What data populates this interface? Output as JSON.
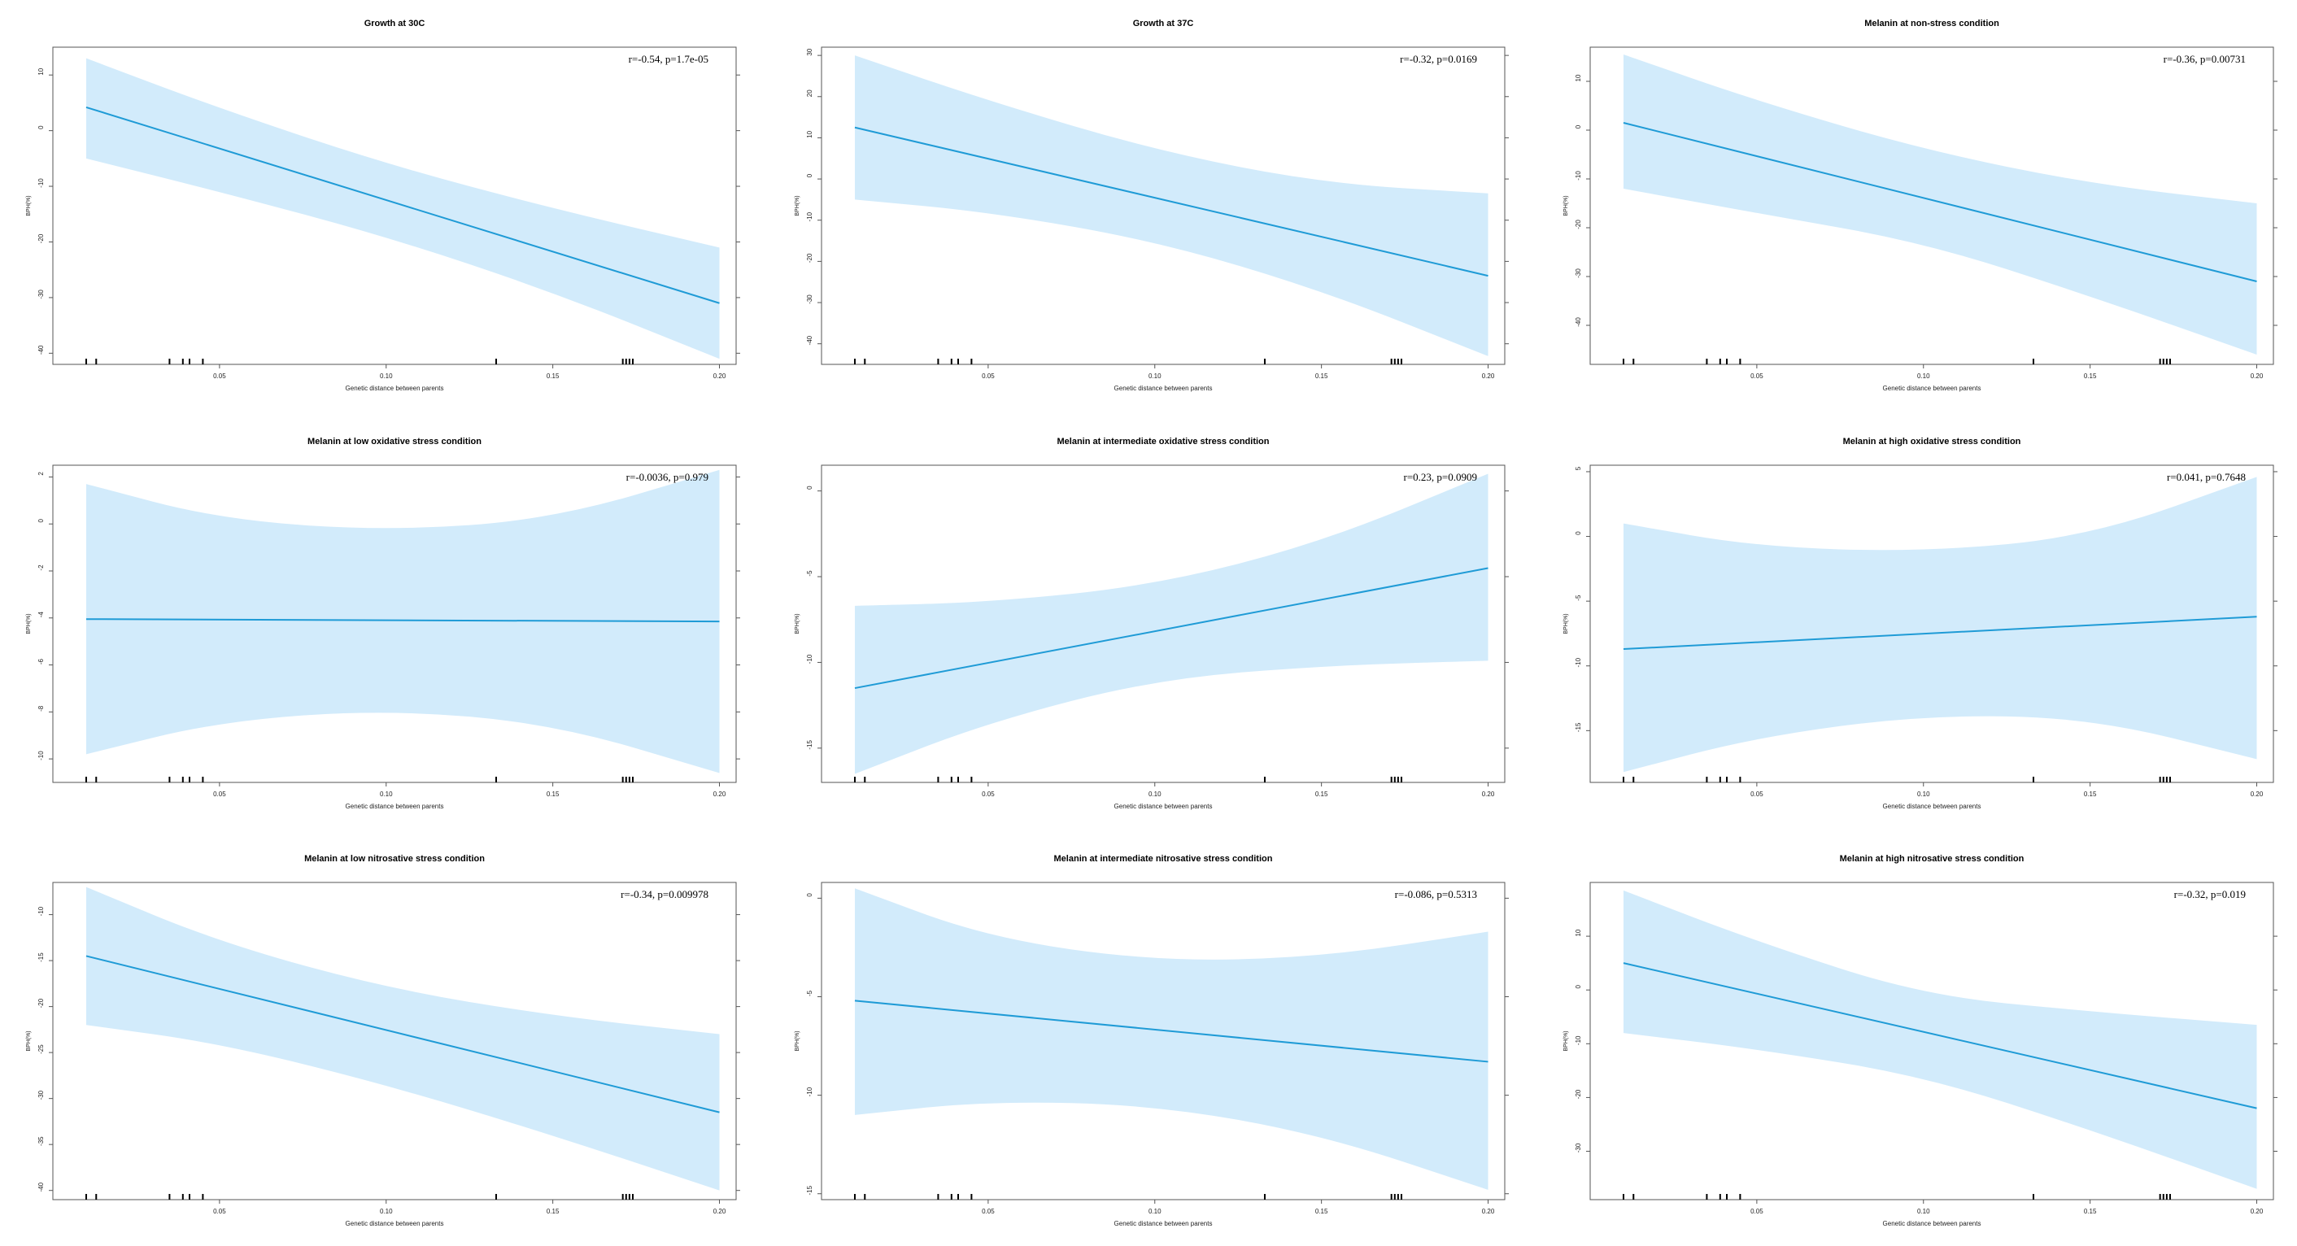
{
  "figure": {
    "panel_count": 9
  },
  "chart_data": [
    {
      "type": "line",
      "title": "Growth at 30C",
      "xlabel": "Genetic distance between parents",
      "ylabel": "BPH(%)",
      "annotation": "r=-0.54, p=1.7e-05",
      "x_ticks": [
        "0.05",
        "0.10",
        "0.15",
        "0.20"
      ],
      "x_tick_values": [
        0.05,
        0.1,
        0.15,
        0.2
      ],
      "y_ticks": [
        "10",
        "0",
        "-10",
        "-20",
        "-30",
        "-40"
      ],
      "y_tick_values": [
        10,
        0,
        -10,
        -20,
        -30,
        -40
      ],
      "xlim": [
        0.0,
        0.205
      ],
      "ylim": [
        -42,
        15
      ],
      "line": {
        "x": [
          0.01,
          0.2
        ],
        "y": [
          4.2,
          -31
        ]
      },
      "band": {
        "x": [
          0.01,
          0.05,
          0.1,
          0.15,
          0.2
        ],
        "upper": [
          13,
          4,
          -6,
          -14,
          -21
        ],
        "lower": [
          -5,
          -11,
          -19,
          -29,
          -41
        ]
      },
      "rug": [
        0.01,
        0.013,
        0.035,
        0.039,
        0.041,
        0.045,
        0.133,
        0.171,
        0.172,
        0.173,
        0.174
      ]
    },
    {
      "type": "line",
      "title": "Growth at 37C",
      "xlabel": "Genetic distance between parents",
      "ylabel": "BPH(%)",
      "annotation": "r=-0.32, p=0.0169",
      "x_ticks": [
        "0.05",
        "0.10",
        "0.15",
        "0.20"
      ],
      "x_tick_values": [
        0.05,
        0.1,
        0.15,
        0.2
      ],
      "y_ticks": [
        "30",
        "20",
        "10",
        "0",
        "-10",
        "-20",
        "-30",
        "-40"
      ],
      "y_tick_values": [
        30,
        20,
        10,
        0,
        -10,
        -20,
        -30,
        -40
      ],
      "xlim": [
        0.0,
        0.205
      ],
      "ylim": [
        -45,
        32
      ],
      "line": {
        "x": [
          0.01,
          0.2
        ],
        "y": [
          12.5,
          -23.5
        ]
      },
      "band": {
        "x": [
          0.01,
          0.05,
          0.1,
          0.15,
          0.2
        ],
        "upper": [
          30,
          19,
          7,
          -1,
          -3.5
        ],
        "lower": [
          -5,
          -8,
          -15,
          -27,
          -43
        ]
      },
      "rug": [
        0.01,
        0.013,
        0.035,
        0.039,
        0.041,
        0.045,
        0.133,
        0.171,
        0.172,
        0.173,
        0.174
      ]
    },
    {
      "type": "line",
      "title": "Melanin at non-stress condition",
      "xlabel": "Genetic distance between parents",
      "ylabel": "BPH(%)",
      "annotation": "r=-0.36, p=0.00731",
      "x_ticks": [
        "0.05",
        "0.10",
        "0.15",
        "0.20"
      ],
      "x_tick_values": [
        0.05,
        0.1,
        0.15,
        0.2
      ],
      "y_ticks": [
        "10",
        "0",
        "-10",
        "-20",
        "-30",
        "-40"
      ],
      "y_tick_values": [
        10,
        0,
        -10,
        -20,
        -30,
        -40
      ],
      "xlim": [
        0.0,
        0.205
      ],
      "ylim": [
        -48,
        17
      ],
      "line": {
        "x": [
          0.01,
          0.2
        ],
        "y": [
          1.5,
          -31
        ]
      },
      "band": {
        "x": [
          0.01,
          0.05,
          0.1,
          0.15,
          0.2
        ],
        "upper": [
          15.5,
          6,
          -4,
          -11,
          -15
        ],
        "lower": [
          -12,
          -17,
          -23,
          -34,
          -46
        ]
      },
      "rug": [
        0.01,
        0.013,
        0.035,
        0.039,
        0.041,
        0.045,
        0.133,
        0.171,
        0.172,
        0.173,
        0.174
      ]
    },
    {
      "type": "line",
      "title": "Melanin at low oxidative stress condition",
      "xlabel": "Genetic distance between parents",
      "ylabel": "BPH(%)",
      "annotation": "r=-0.0036, p=0.979",
      "x_ticks": [
        "0.05",
        "0.10",
        "0.15",
        "0.20"
      ],
      "x_tick_values": [
        0.05,
        0.1,
        0.15,
        0.2
      ],
      "y_ticks": [
        "2",
        "0",
        "-2",
        "-4",
        "-6",
        "-8",
        "-10"
      ],
      "y_tick_values": [
        2,
        0,
        -2,
        -4,
        -6,
        -8,
        -10
      ],
      "xlim": [
        0.0,
        0.205
      ],
      "ylim": [
        -11,
        2.5
      ],
      "line": {
        "x": [
          0.01,
          0.2
        ],
        "y": [
          -4.05,
          -4.15
        ]
      },
      "band": {
        "x": [
          0.01,
          0.05,
          0.1,
          0.15,
          0.2
        ],
        "upper": [
          1.7,
          0.2,
          -0.3,
          0.2,
          2.3
        ],
        "lower": [
          -9.8,
          -8.4,
          -7.9,
          -8.5,
          -10.6
        ]
      },
      "rug": [
        0.01,
        0.013,
        0.035,
        0.039,
        0.041,
        0.045,
        0.133,
        0.171,
        0.172,
        0.173,
        0.174
      ]
    },
    {
      "type": "line",
      "title": "Melanin at intermediate oxidative stress condition",
      "xlabel": "Genetic distance between parents",
      "ylabel": "BPH(%)",
      "annotation": "r=0.23, p=0.0909",
      "x_ticks": [
        "0.05",
        "0.10",
        "0.15",
        "0.20"
      ],
      "x_tick_values": [
        0.05,
        0.1,
        0.15,
        0.2
      ],
      "y_ticks": [
        "0",
        "-5",
        "-10",
        "-15"
      ],
      "y_tick_values": [
        0,
        -5,
        -10,
        -15
      ],
      "xlim": [
        0.0,
        0.205
      ],
      "ylim": [
        -17,
        1.5
      ],
      "line": {
        "x": [
          0.01,
          0.2
        ],
        "y": [
          -11.5,
          -4.5
        ]
      },
      "band": {
        "x": [
          0.01,
          0.05,
          0.1,
          0.15,
          0.2
        ],
        "upper": [
          -6.7,
          -6.5,
          -5.5,
          -3,
          1
        ],
        "lower": [
          -16.5,
          -13.5,
          -11,
          -10.2,
          -9.9
        ]
      },
      "rug": [
        0.01,
        0.013,
        0.035,
        0.039,
        0.041,
        0.045,
        0.133,
        0.171,
        0.172,
        0.173,
        0.174
      ]
    },
    {
      "type": "line",
      "title": "Melanin at high oxidative stress condition",
      "xlabel": "Genetic distance between parents",
      "ylabel": "BPH(%)",
      "annotation": "r=0.041, p=0.7648",
      "x_ticks": [
        "0.05",
        "0.10",
        "0.15",
        "0.20"
      ],
      "x_tick_values": [
        0.05,
        0.1,
        0.15,
        0.2
      ],
      "y_ticks": [
        "5",
        "0",
        "-5",
        "-10",
        "-15"
      ],
      "y_tick_values": [
        5,
        0,
        -5,
        -10,
        -15
      ],
      "xlim": [
        0.0,
        0.205
      ],
      "ylim": [
        -19,
        5.5
      ],
      "line": {
        "x": [
          0.01,
          0.2
        ],
        "y": [
          -8.7,
          -6.2
        ]
      },
      "band": {
        "x": [
          0.01,
          0.05,
          0.1,
          0.15,
          0.2
        ],
        "upper": [
          1,
          -0.8,
          -1.2,
          0,
          4.6
        ],
        "lower": [
          -18.2,
          -15.5,
          -13.8,
          -14,
          -17.2
        ]
      },
      "rug": [
        0.01,
        0.013,
        0.035,
        0.039,
        0.041,
        0.045,
        0.133,
        0.171,
        0.172,
        0.173,
        0.174
      ]
    },
    {
      "type": "line",
      "title": "Melanin at low nitrosative stress condition",
      "xlabel": "Genetic distance between parents",
      "ylabel": "BPH(%)",
      "annotation": "r=-0.34, p=0.009978",
      "x_ticks": [
        "0.05",
        "0.10",
        "0.15",
        "0.20"
      ],
      "x_tick_values": [
        0.05,
        0.1,
        0.15,
        0.2
      ],
      "y_ticks": [
        "-10",
        "-15",
        "-20",
        "-25",
        "-30",
        "-35",
        "-40"
      ],
      "y_tick_values": [
        -10,
        -15,
        -20,
        -25,
        -30,
        -35,
        -40
      ],
      "xlim": [
        0.0,
        0.205
      ],
      "ylim": [
        -41,
        -6.5
      ],
      "line": {
        "x": [
          0.01,
          0.2
        ],
        "y": [
          -14.5,
          -31.5
        ]
      },
      "band": {
        "x": [
          0.01,
          0.05,
          0.1,
          0.15,
          0.2
        ],
        "upper": [
          -7,
          -13,
          -18,
          -21,
          -23
        ],
        "lower": [
          -22,
          -24,
          -28.5,
          -34,
          -40
        ]
      },
      "rug": [
        0.01,
        0.013,
        0.035,
        0.039,
        0.041,
        0.045,
        0.133,
        0.171,
        0.172,
        0.173,
        0.174
      ]
    },
    {
      "type": "line",
      "title": "Melanin at intermediate nitrosative stress condition",
      "xlabel": "Genetic distance between parents",
      "ylabel": "BPH(%)",
      "annotation": "r=-0.086, p=0.5313",
      "x_ticks": [
        "0.05",
        "0.10",
        "0.15",
        "0.20"
      ],
      "x_tick_values": [
        0.05,
        0.1,
        0.15,
        0.2
      ],
      "y_ticks": [
        "0",
        "-5",
        "-10",
        "-15"
      ],
      "y_tick_values": [
        0,
        -5,
        -10,
        -15
      ],
      "xlim": [
        0.0,
        0.205
      ],
      "ylim": [
        -15.3,
        0.8
      ],
      "line": {
        "x": [
          0.01,
          0.2
        ],
        "y": [
          -5.2,
          -8.3
        ]
      },
      "band": {
        "x": [
          0.01,
          0.05,
          0.1,
          0.15,
          0.2
        ],
        "upper": [
          0.5,
          -2,
          -3.2,
          -3,
          -1.7
        ],
        "lower": [
          -11,
          -10.3,
          -10.5,
          -12,
          -14.8
        ]
      },
      "rug": [
        0.01,
        0.013,
        0.035,
        0.039,
        0.041,
        0.045,
        0.133,
        0.171,
        0.172,
        0.173,
        0.174
      ]
    },
    {
      "type": "line",
      "title": "Melanin at high nitrosative stress condition",
      "xlabel": "Genetic distance between parents",
      "ylabel": "BPH(%)",
      "annotation": "r=-0.32, p=0.019",
      "x_ticks": [
        "0.05",
        "0.10",
        "0.15",
        "0.20"
      ],
      "x_tick_values": [
        0.05,
        0.1,
        0.15,
        0.2
      ],
      "y_ticks": [
        "10",
        "0",
        "-10",
        "-20",
        "-30"
      ],
      "y_tick_values": [
        10,
        0,
        -10,
        -20,
        -30
      ],
      "xlim": [
        0.0,
        0.205
      ],
      "ylim": [
        -39,
        20
      ],
      "line": {
        "x": [
          0.01,
          0.2
        ],
        "y": [
          5,
          -22
        ]
      },
      "band": {
        "x": [
          0.01,
          0.05,
          0.1,
          0.15,
          0.2
        ],
        "upper": [
          18.5,
          9,
          -1,
          -4,
          -6.5
        ],
        "lower": [
          -8,
          -11,
          -16,
          -26,
          -37
        ]
      },
      "rug": [
        0.01,
        0.013,
        0.035,
        0.039,
        0.041,
        0.045,
        0.133,
        0.171,
        0.172,
        0.173,
        0.174
      ]
    }
  ],
  "colors": {
    "line": "#1f9bd6",
    "band": "#d2ebfb",
    "axis": "#555555",
    "text": "#000000"
  }
}
